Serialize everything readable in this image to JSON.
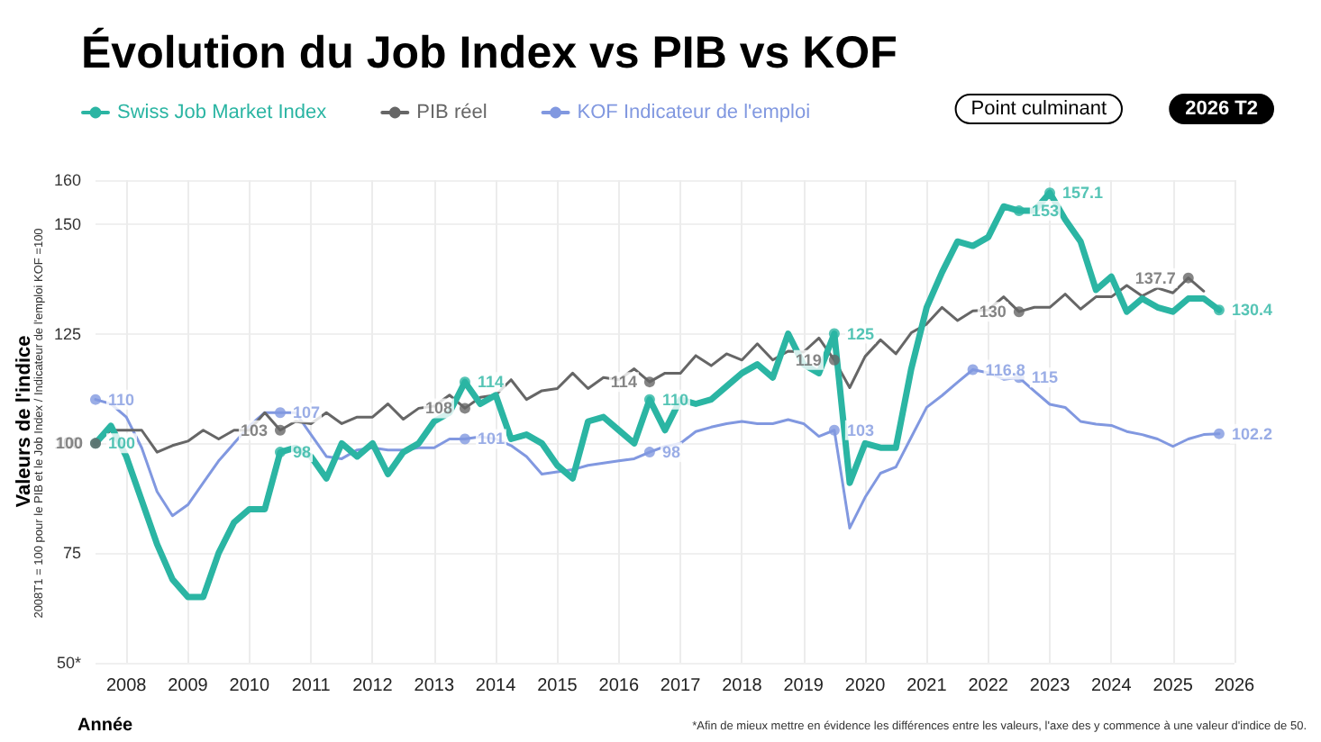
{
  "chart_data": {
    "type": "line",
    "title": "Évolution du Job Index vs PIB vs KOF",
    "xlabel": "Année",
    "ylabel": "Valeurs de l'indice",
    "annotations": [
      "2008T1 = 100 pour le PIB et le Job Index / Indicateur de l'emploi KOF =100",
      "*Afin de mieux mettre en évidence les différences entre les valeurs, l'axe des y commence à une valeur d'indice de 50.",
      "Point culminant",
      "2026 T2"
    ],
    "x": [
      2008,
      2008.25,
      2008.5,
      2008.75,
      2009,
      2009.25,
      2009.5,
      2009.75,
      2010,
      2010.25,
      2010.5,
      2010.75,
      2011,
      2011.25,
      2011.5,
      2011.75,
      2012,
      2012.25,
      2012.5,
      2012.75,
      2013,
      2013.25,
      2013.5,
      2013.75,
      2014,
      2014.25,
      2014.5,
      2014.75,
      2015,
      2015.25,
      2015.5,
      2015.75,
      2016,
      2016.25,
      2016.5,
      2016.75,
      2017,
      2017.25,
      2017.5,
      2017.75,
      2018,
      2018.25,
      2018.5,
      2018.75,
      2019,
      2019.25,
      2019.5,
      2019.75,
      2020,
      2020.25,
      2020.5,
      2020.75,
      2021,
      2021.25,
      2021.5,
      2021.75,
      2022,
      2022.25,
      2022.5,
      2022.75,
      2023,
      2023.25,
      2023.5,
      2023.75,
      2024,
      2024.25,
      2024.5,
      2024.75,
      2025,
      2025.25,
      2025.5,
      2025.75,
      2026,
      2026.25
    ],
    "series": [
      {
        "name": "Swiss Job Market Index",
        "color": "#2bb5a3",
        "values": [
          100,
          104,
          97,
          87,
          77,
          69,
          65,
          65,
          75,
          82,
          85,
          85,
          98,
          99,
          97,
          92,
          100,
          97,
          100,
          93,
          98,
          100,
          105,
          107,
          114,
          109,
          111,
          101,
          102,
          100,
          95,
          92,
          105,
          106,
          103,
          100,
          110,
          103,
          110,
          109,
          110,
          113,
          116,
          118,
          115,
          125,
          118,
          116,
          125,
          91,
          100,
          99,
          99,
          117,
          131,
          139,
          146,
          145,
          147,
          154,
          153,
          153,
          157.1,
          151,
          146,
          135,
          138,
          130,
          133,
          131,
          130,
          133,
          133,
          130.4
        ],
        "value_labels": [
          "100",
          null,
          null,
          null,
          null,
          null,
          null,
          null,
          null,
          null,
          null,
          null,
          "98",
          null,
          null,
          null,
          null,
          null,
          null,
          null,
          null,
          null,
          null,
          null,
          "114",
          null,
          null,
          null,
          null,
          null,
          null,
          null,
          null,
          null,
          null,
          null,
          "110",
          null,
          null,
          null,
          null,
          null,
          null,
          null,
          null,
          null,
          null,
          null,
          "125",
          null,
          null,
          null,
          null,
          null,
          null,
          null,
          null,
          null,
          null,
          null,
          "153",
          null,
          "157.1",
          null,
          null,
          null,
          null,
          null,
          null,
          null,
          null,
          null,
          null,
          "130.4"
        ]
      },
      {
        "name": "PIB réel",
        "color": "#666666",
        "values": [
          100,
          103,
          103,
          103,
          98,
          99.5,
          100.5,
          103,
          101,
          103,
          103,
          107,
          103,
          105,
          104.5,
          107,
          104.5,
          106,
          106,
          109,
          105.5,
          108,
          108.5,
          111,
          108,
          110.5,
          111,
          114.5,
          110,
          112,
          112.5,
          116,
          112.5,
          115,
          114.5,
          117,
          114,
          116,
          116,
          120,
          117.7,
          120.4,
          119,
          122.7,
          119,
          121,
          120.8,
          124,
          119,
          112.7,
          119.8,
          123.6,
          120.4,
          125.2,
          127.2,
          131,
          128,
          130.2,
          130.4,
          133.4,
          130,
          131,
          131,
          134,
          130.6,
          133.4,
          133.4,
          136,
          133.6,
          135.4,
          134.3,
          137.7,
          134.7,
          null
        ],
        "value_labels": [
          "100",
          null,
          null,
          null,
          null,
          null,
          null,
          null,
          null,
          null,
          null,
          null,
          "103",
          null,
          null,
          null,
          null,
          null,
          null,
          null,
          null,
          null,
          null,
          null,
          "108",
          null,
          null,
          null,
          null,
          null,
          null,
          null,
          null,
          null,
          null,
          null,
          "114",
          null,
          null,
          null,
          null,
          null,
          null,
          null,
          null,
          null,
          null,
          null,
          "119",
          null,
          null,
          null,
          null,
          null,
          null,
          null,
          null,
          null,
          null,
          null,
          "130",
          null,
          null,
          null,
          null,
          null,
          null,
          null,
          null,
          null,
          null,
          "137.7",
          null,
          null
        ]
      },
      {
        "name": "KOF Indicateur de l'emploi",
        "color": "#8198e0",
        "values": [
          110,
          109,
          106,
          99,
          89,
          83.5,
          86,
          91,
          96,
          100,
          104,
          107,
          107,
          107,
          102,
          97,
          96.5,
          98.5,
          99,
          98.5,
          98.5,
          99,
          99,
          101,
          101,
          101.5,
          101,
          99.5,
          97,
          93,
          93.5,
          94,
          95,
          95.5,
          96,
          96.5,
          98,
          99.3,
          100,
          102.7,
          103.7,
          104.5,
          105,
          104.5,
          104.5,
          105.4,
          104.5,
          101.6,
          103,
          80.7,
          87.7,
          93.2,
          94.6,
          101.4,
          108.2,
          110.9,
          113.9,
          116.8,
          116.1,
          114.6,
          115,
          111.9,
          108.9,
          108.2,
          105,
          104.4,
          104.1,
          102.7,
          102,
          101,
          99.3,
          101,
          102,
          102.2
        ],
        "value_labels": [
          "110",
          null,
          null,
          null,
          null,
          null,
          null,
          null,
          null,
          null,
          null,
          null,
          "107",
          null,
          null,
          null,
          null,
          null,
          null,
          null,
          null,
          null,
          null,
          null,
          "101",
          null,
          null,
          null,
          null,
          null,
          null,
          null,
          null,
          null,
          null,
          null,
          "98",
          null,
          null,
          null,
          null,
          null,
          null,
          null,
          null,
          null,
          null,
          null,
          "103",
          null,
          null,
          null,
          null,
          null,
          null,
          null,
          null,
          "116.8",
          null,
          null,
          "115",
          null,
          null,
          null,
          null,
          null,
          null,
          null,
          null,
          null,
          null,
          null,
          null,
          "102.2"
        ]
      }
    ],
    "xlim": [
      2008,
      2026.5
    ],
    "xticks": [
      {
        "value": 2008.5,
        "label": "2008"
      },
      {
        "value": 2009.5,
        "label": "2009"
      },
      {
        "value": 2010.5,
        "label": "2010"
      },
      {
        "value": 2011.5,
        "label": "2011"
      },
      {
        "value": 2012.5,
        "label": "2012"
      },
      {
        "value": 2013.5,
        "label": "2013"
      },
      {
        "value": 2014.5,
        "label": "2014"
      },
      {
        "value": 2015.5,
        "label": "2015"
      },
      {
        "value": 2016.5,
        "label": "2016"
      },
      {
        "value": 2017.5,
        "label": "2017"
      },
      {
        "value": 2018.5,
        "label": "2018"
      },
      {
        "value": 2019.5,
        "label": "2019"
      },
      {
        "value": 2020.5,
        "label": "2020"
      },
      {
        "value": 2021.5,
        "label": "2021"
      },
      {
        "value": 2022.5,
        "label": "2022"
      },
      {
        "value": 2023.5,
        "label": "2023"
      },
      {
        "value": 2024.5,
        "label": "2024"
      },
      {
        "value": 2025.5,
        "label": "2025"
      },
      {
        "value": 2026.5,
        "label": "2026"
      }
    ],
    "ylim": [
      50,
      160
    ],
    "yticks": [
      {
        "value": 50,
        "label": "50*"
      },
      75,
      100,
      125,
      150,
      160
    ],
    "grid": true,
    "legend": "top left",
    "line_style": "solid"
  }
}
